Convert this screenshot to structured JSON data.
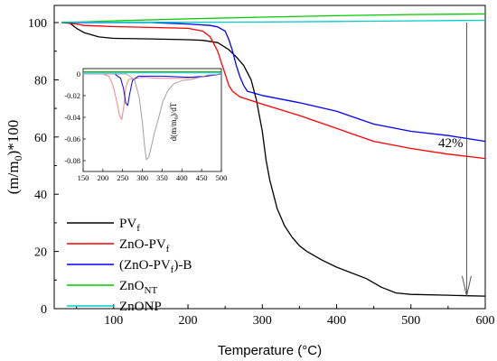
{
  "chart_data": [
    {
      "type": "line",
      "xlabel": "Temperature (°C)",
      "ylabel": "(m/m0)*100",
      "ylabel_parts": {
        "main": "(m/m",
        "sub": "0",
        "tail": ")*100"
      },
      "xlim": [
        20,
        600
      ],
      "ylim": [
        0,
        106
      ],
      "x_ticks": [
        100,
        200,
        300,
        400,
        500,
        600
      ],
      "y_ticks": [
        0,
        20,
        40,
        60,
        80,
        100
      ],
      "legend_position": "lower-left",
      "annotation": {
        "text": "42%",
        "x": 575,
        "y_from": 100,
        "y_to": 4.5
      },
      "series": [
        {
          "name": "PVf",
          "label_main": "PV",
          "label_sub": "f",
          "label_tail": "",
          "sub_is_subscript": true,
          "color": "#000000",
          "points": [
            [
              30,
              100
            ],
            [
              40,
              100
            ],
            [
              50,
              98
            ],
            [
              60,
              96.5
            ],
            [
              80,
              95
            ],
            [
              100,
              94.5
            ],
            [
              150,
              94.3
            ],
            [
              200,
              94
            ],
            [
              220,
              93.8
            ],
            [
              240,
              93
            ],
            [
              255,
              90.5
            ],
            [
              265,
              88
            ],
            [
              275,
              85
            ],
            [
              285,
              80
            ],
            [
              292,
              73
            ],
            [
              300,
              62
            ],
            [
              305,
              52
            ],
            [
              310,
              45
            ],
            [
              315,
              40
            ],
            [
              320,
              35
            ],
            [
              330,
              29
            ],
            [
              340,
              25
            ],
            [
              350,
              22
            ],
            [
              360,
              20
            ],
            [
              380,
              17
            ],
            [
              400,
              14.5
            ],
            [
              420,
              12.5
            ],
            [
              440,
              10.5
            ],
            [
              460,
              7.5
            ],
            [
              480,
              5.5
            ],
            [
              500,
              5
            ],
            [
              550,
              4.7
            ],
            [
              575,
              4.5
            ],
            [
              600,
              4.4
            ]
          ]
        },
        {
          "name": "ZnO-PVf",
          "label_main": "ZnO-PV",
          "label_sub": "f",
          "label_tail": "",
          "sub_is_subscript": true,
          "color": "#ff0000",
          "points": [
            [
              30,
              100
            ],
            [
              50,
              99.5
            ],
            [
              60,
              99
            ],
            [
              80,
              98.8
            ],
            [
              100,
              98.6
            ],
            [
              150,
              98.3
            ],
            [
              200,
              98
            ],
            [
              220,
              97
            ],
            [
              230,
              95
            ],
            [
              240,
              90
            ],
            [
              245,
              86
            ],
            [
              250,
              82
            ],
            [
              255,
              78
            ],
            [
              260,
              76
            ],
            [
              270,
              74
            ],
            [
              300,
              71.5
            ],
            [
              350,
              67.5
            ],
            [
              400,
              63
            ],
            [
              450,
              58.5
            ],
            [
              500,
              56
            ],
            [
              550,
              54
            ],
            [
              600,
              52.5
            ]
          ]
        },
        {
          "name": "(ZnO-PVf)-B",
          "label_main": "(ZnO-PV",
          "label_sub": "f",
          "label_tail": ")-B",
          "sub_is_subscript": true,
          "color": "#0000ff",
          "points": [
            [
              30,
              100
            ],
            [
              100,
              100
            ],
            [
              150,
              100
            ],
            [
              200,
              99.5
            ],
            [
              230,
              99
            ],
            [
              240,
              98.5
            ],
            [
              250,
              97
            ],
            [
              255,
              94
            ],
            [
              260,
              90
            ],
            [
              265,
              85
            ],
            [
              270,
              81
            ],
            [
              275,
              78
            ],
            [
              280,
              76
            ],
            [
              300,
              74.5
            ],
            [
              350,
              72
            ],
            [
              400,
              69
            ],
            [
              450,
              64.5
            ],
            [
              500,
              62
            ],
            [
              550,
              60.5
            ],
            [
              600,
              58.5
            ]
          ]
        },
        {
          "name": "ZnONT",
          "label_main": "ZnO",
          "label_sub": "NT",
          "label_tail": "",
          "sub_is_subscript": true,
          "color": "#00cc00",
          "points": [
            [
              30,
              100
            ],
            [
              100,
              100.6
            ],
            [
              200,
              101.3
            ],
            [
              300,
              101.9
            ],
            [
              400,
              102.4
            ],
            [
              500,
              102.8
            ],
            [
              600,
              103
            ]
          ]
        },
        {
          "name": "ZnONP",
          "label_main": "ZnONP",
          "label_sub": "",
          "label_tail": "",
          "sub_is_subscript": false,
          "color": "#00cccc",
          "points": [
            [
              30,
              100.2
            ],
            [
              100,
              100.1
            ],
            [
              200,
              100.1
            ],
            [
              300,
              100.2
            ],
            [
              400,
              100.4
            ],
            [
              500,
              100.6
            ],
            [
              600,
              100.8
            ]
          ]
        }
      ]
    },
    {
      "type": "line",
      "role": "inset",
      "ylabel": "d(m/m0)/dT",
      "ylabel_parts": {
        "main": "d(m/m",
        "sub": "0",
        "tail": ")/dT"
      },
      "xlim": [
        150,
        500
      ],
      "ylim": [
        -0.09,
        0.005
      ],
      "x_ticks": [
        150,
        200,
        250,
        300,
        350,
        400,
        450,
        500
      ],
      "y_ticks": [
        0,
        -0.02,
        -0.04,
        -0.06,
        -0.08
      ],
      "y_tick_labels": [
        "0",
        "-0.02",
        "-0.04",
        "-0.06",
        "-0.08"
      ],
      "series": [
        {
          "name": "ZnO-PVf",
          "color": "#ff8080",
          "points": [
            [
              150,
              0
            ],
            [
              200,
              0
            ],
            [
              215,
              -0.002
            ],
            [
              225,
              -0.01
            ],
            [
              235,
              -0.025
            ],
            [
              242,
              -0.038
            ],
            [
              248,
              -0.042
            ],
            [
              253,
              -0.03
            ],
            [
              258,
              -0.012
            ],
            [
              265,
              -0.005
            ],
            [
              300,
              -0.003
            ],
            [
              350,
              -0.004
            ],
            [
              400,
              -0.004
            ],
            [
              450,
              -0.003
            ],
            [
              480,
              -0.001
            ],
            [
              500,
              0
            ]
          ]
        },
        {
          "name": "(ZnO-PVf)-B",
          "color": "#0000ff",
          "points": [
            [
              150,
              0
            ],
            [
              230,
              0
            ],
            [
              245,
              -0.004
            ],
            [
              252,
              -0.013
            ],
            [
              258,
              -0.027
            ],
            [
              263,
              -0.029
            ],
            [
              268,
              -0.018
            ],
            [
              275,
              -0.006
            ],
            [
              290,
              -0.002
            ],
            [
              350,
              -0.002
            ],
            [
              420,
              -0.003
            ],
            [
              460,
              -0.002
            ],
            [
              480,
              -0.001
            ],
            [
              500,
              0
            ]
          ]
        },
        {
          "name": "PVf",
          "color": "#a0a0a0",
          "points": [
            [
              150,
              0
            ],
            [
              260,
              0
            ],
            [
              280,
              -0.005
            ],
            [
              292,
              -0.022
            ],
            [
              300,
              -0.045
            ],
            [
              305,
              -0.065
            ],
            [
              310,
              -0.079
            ],
            [
              316,
              -0.077
            ],
            [
              322,
              -0.068
            ],
            [
              330,
              -0.055
            ],
            [
              340,
              -0.042
            ],
            [
              352,
              -0.025
            ],
            [
              365,
              -0.015
            ],
            [
              380,
              -0.009
            ],
            [
              400,
              -0.006
            ],
            [
              425,
              -0.005
            ],
            [
              445,
              -0.003
            ],
            [
              465,
              -0.001
            ],
            [
              500,
              0
            ]
          ]
        },
        {
          "name": "ZnONT",
          "color": "#00aa00",
          "points": [
            [
              150,
              0.002
            ],
            [
              300,
              0.002
            ],
            [
              400,
              0.002
            ],
            [
              500,
              0.002
            ]
          ]
        },
        {
          "name": "ZnONP",
          "color": "#00cccc",
          "points": [
            [
              150,
              0.001
            ],
            [
              300,
              0.001
            ],
            [
              400,
              0.001
            ],
            [
              500,
              0.001
            ]
          ]
        }
      ]
    }
  ]
}
